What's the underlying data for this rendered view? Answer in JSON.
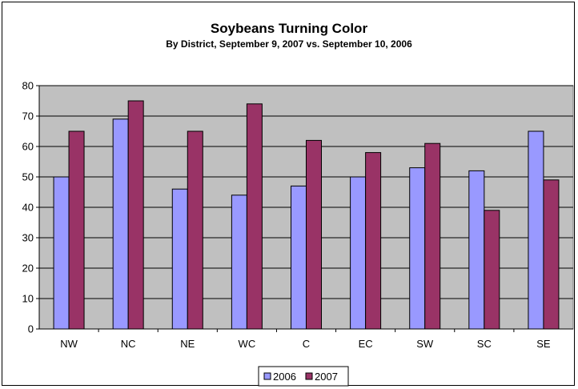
{
  "chart_data": {
    "type": "bar",
    "title": "Soybeans Turning Color",
    "subtitle": "By District, September 9, 2007 vs. September 10, 2006",
    "categories": [
      "NW",
      "NC",
      "NE",
      "WC",
      "C",
      "EC",
      "SW",
      "SC",
      "SE"
    ],
    "series": [
      {
        "name": "2006",
        "color": "#9999FF",
        "values": [
          50,
          69,
          46,
          44,
          47,
          50,
          53,
          52,
          65
        ]
      },
      {
        "name": "2007",
        "color": "#993366",
        "values": [
          65,
          75,
          65,
          74,
          62,
          58,
          61,
          39,
          49
        ]
      }
    ],
    "xlabel": "",
    "ylabel": "",
    "ylim": [
      0,
      80
    ],
    "yticks": [
      0,
      10,
      20,
      30,
      40,
      50,
      60,
      70,
      80
    ],
    "grid": true,
    "plot_background": "#C0C0C0",
    "legend_position": "bottom"
  }
}
